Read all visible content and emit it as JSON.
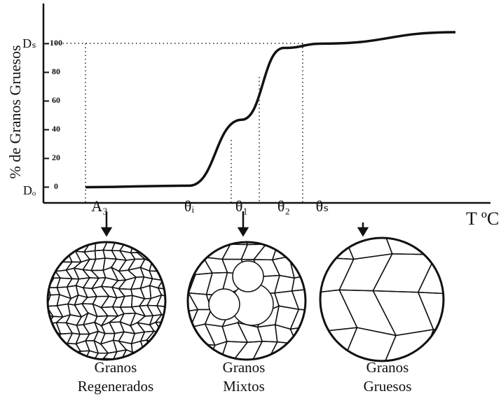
{
  "chart_data": {
    "type": "line",
    "y_label": "% de Granos Gruesos",
    "x_label": "T ºC",
    "y_top_label": "Dₛ",
    "y_bottom_label": "Dₒ",
    "categories": [
      "A₃",
      "θᵢ",
      "θ₁",
      "θ₂",
      "θₛ",
      null
    ],
    "series": [
      {
        "color": "#111111",
        "values": [
          0,
          1,
          47,
          97,
          100,
          108
        ]
      }
    ],
    "ylim": [
      -11,
      128
    ],
    "yticks": [
      0,
      20,
      40,
      60,
      80,
      100
    ]
  },
  "diagrams": [
    {
      "label": [
        "Granos",
        "Regenerados"
      ]
    },
    {
      "label": [
        "Granos",
        "Mixtos"
      ]
    },
    {
      "label": [
        "Granos",
        "Gruesos"
      ]
    }
  ]
}
